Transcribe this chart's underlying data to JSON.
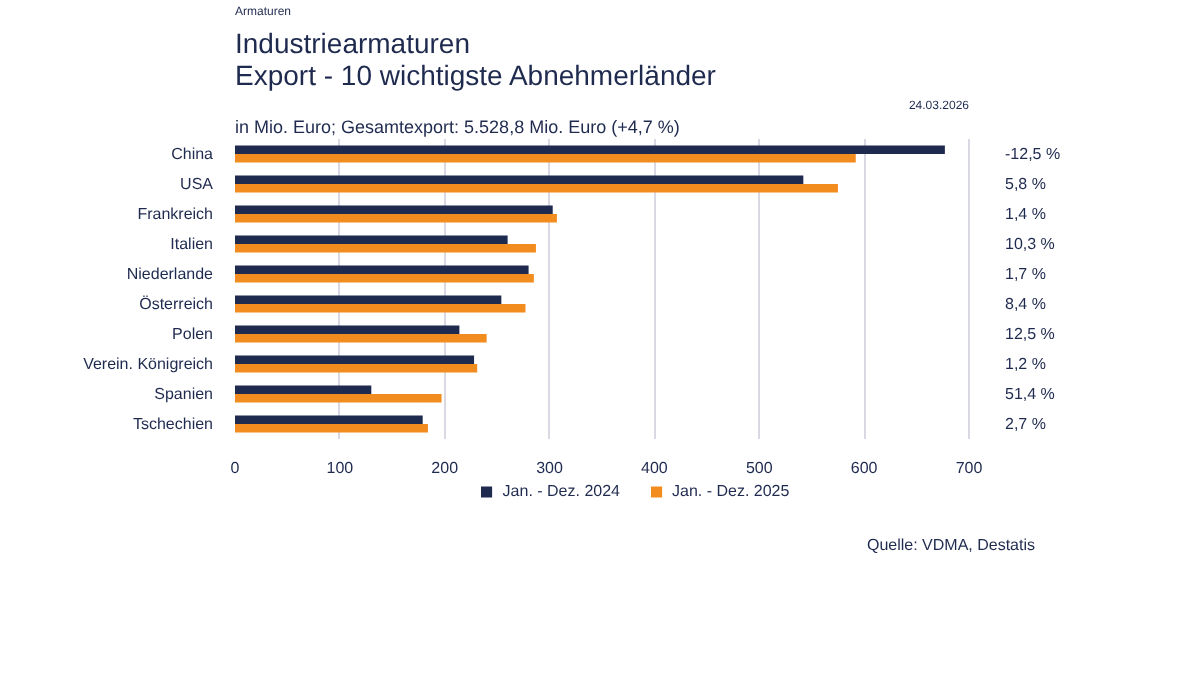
{
  "chart_data": {
    "type": "bar",
    "orientation": "horizontal",
    "title": "Industriearmaturen\nExport - 10 wichtigste Abnehmerländer",
    "subtitle": "in Mio. Euro; Gesamtexport: 5.528,8 Mio. Euro (+4,7 %)",
    "categories": [
      "China",
      "USA",
      "Frankreich",
      "Italien",
      "Niederlande",
      "Österreich",
      "Polen",
      "Verein. Königreich",
      "Spanien",
      "Tschechien"
    ],
    "series": [
      {
        "name": "Jan. - Dez. 2024",
        "color": "#1f2a4f",
        "values": [
          677,
          542,
          303,
          260,
          280,
          254,
          214,
          228,
          130,
          179
        ]
      },
      {
        "name": "Jan. - Dez. 2025",
        "color": "#f28c1e",
        "values": [
          592,
          575,
          307,
          287,
          285,
          277,
          240,
          231,
          197,
          184
        ]
      }
    ],
    "xlim": [
      0,
      700
    ],
    "xticks": [
      0,
      100,
      200,
      300,
      400,
      500,
      600,
      700
    ],
    "grid": "x",
    "legend": "bottom",
    "annotations": [
      "Armaturen",
      "24.03.2026",
      "Quelle: VDMA, Destatis",
      "-12,5 %",
      "5,8 %",
      "1,4 %",
      "10,3 %",
      "1,7 %",
      "8,4 %",
      "12,5 %",
      "1,2 %",
      "51,4 %",
      "2,7 %"
    ]
  }
}
